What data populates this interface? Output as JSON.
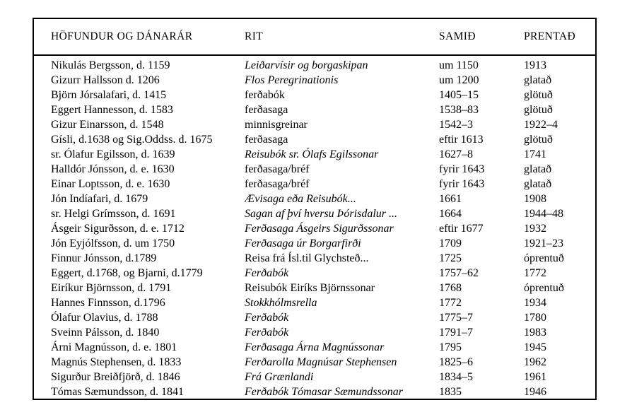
{
  "page": {
    "background": "#ffffff",
    "text_color": "#000000",
    "border_color": "#000000"
  },
  "table": {
    "headers": [
      "HÖFUNDUR OG DÁNARÁR",
      "RIT",
      "SAMIÐ",
      "PRENTAÐ"
    ],
    "rows": [
      {
        "author": "Nikulás Bergsson, d. 1159",
        "rit": "Leiðarvísir og borgaskipan",
        "rit_italic": true,
        "samid": "um 1150",
        "prentad": "1913"
      },
      {
        "author": "Gizurr Hallsson d. 1206",
        "rit": "Flos Peregrinationis",
        "rit_italic": true,
        "samid": "um 1200",
        "prentad": "glatað"
      },
      {
        "author": "Björn Jórsalafari, d. 1415",
        "rit": "ferðabók",
        "rit_italic": false,
        "samid": "1405–15",
        "prentad": "glötuð"
      },
      {
        "author": "Eggert Hannesson, d. 1583",
        "rit": "ferðasaga",
        "rit_italic": false,
        "samid": "1538–83",
        "prentad": "glötuð"
      },
      {
        "author": "Gizur Einarsson, d. 1548",
        "rit": "minnisgreinar",
        "rit_italic": false,
        "samid": "1542–3",
        "prentad": "1922–4"
      },
      {
        "author": "Gísli, d.1638 og Sig.Oddss. d. 1675",
        "rit": "ferðasaga",
        "rit_italic": false,
        "samid": "eftir 1613",
        "prentad": "glötuð"
      },
      {
        "author": "sr. Ólafur Egilsson, d. 1639",
        "rit": "Reisubók sr. Ólafs Egilssonar",
        "rit_italic": true,
        "samid": "1627–8",
        "prentad": "1741"
      },
      {
        "author": "Halldór Jónsson, d. e. 1630",
        "rit": "ferðasaga/bréf",
        "rit_italic": false,
        "samid": "fyrir 1643",
        "prentad": "glatað"
      },
      {
        "author": "Einar Loptsson, d. e. 1630",
        "rit": "ferðasaga/bréf",
        "rit_italic": false,
        "samid": "fyrir 1643",
        "prentad": "glatað"
      },
      {
        "author": "Jón Indíafari, d. 1679",
        "rit": "Ævisaga eða Reisubók...",
        "rit_italic": true,
        "samid": "1661",
        "prentad": "1908"
      },
      {
        "author": "sr. Helgi Grímsson, d. 1691",
        "rit": "Sagan af því hversu Þórisdalur ...",
        "rit_italic": true,
        "samid": "1664",
        "prentad": "1944–48"
      },
      {
        "author": "Ásgeir Sigurðsson, d. e. 1712",
        "rit": "Ferðasaga Ásgeirs Sigurðssonar",
        "rit_italic": true,
        "samid": "eftir 1677",
        "prentad": "1932"
      },
      {
        "author": "Jón Eyjólfsson, d. um 1750",
        "rit": "Ferðasaga úr Borgarfirði",
        "rit_italic": true,
        "samid": "1709",
        "prentad": "1921–23"
      },
      {
        "author": "Finnur Jónsson, d.1789",
        "rit": "Reisa frá Ísl.til Glychsteð...",
        "rit_italic": false,
        "samid": "1725",
        "prentad": "óprentuð"
      },
      {
        "author": "Eggert, d.1768, og Bjarni, d.1779",
        "rit": "Ferðabók",
        "rit_italic": true,
        "samid": "1757–62",
        "prentad": "1772"
      },
      {
        "author": "Eiríkur Björnsson, d. 1791",
        "rit": "Reisubók Eiríks Björnssonar",
        "rit_italic": false,
        "samid": "1768",
        "prentad": "óprentuð"
      },
      {
        "author": "Hannes Finnsson, d.1796",
        "rit": "Stokkhólmsrella",
        "rit_italic": true,
        "samid": "1772",
        "prentad": "1934"
      },
      {
        "author": "Ólafur Olavius, d. 1788",
        "rit": "Ferðabók",
        "rit_italic": true,
        "samid": "1775–7",
        "prentad": "1780"
      },
      {
        "author": "Sveinn Pálsson, d. 1840",
        "rit": "Ferðabók",
        "rit_italic": true,
        "samid": "1791–7",
        "prentad": "1983"
      },
      {
        "author": "Árni Magnússon, d. e. 1801",
        "rit": "Ferðasaga Árna Magnússonar",
        "rit_italic": true,
        "samid": "1795",
        "prentad": "1945"
      },
      {
        "author": "Magnús Stephensen, d. 1833",
        "rit": "Ferðarolla Magnúsar Stephensen",
        "rit_italic": true,
        "samid": "1825–6",
        "prentad": "1962"
      },
      {
        "author": "Sigurður Breiðfjörð, d. 1846",
        "rit": "Frá Grænlandi",
        "rit_italic": true,
        "samid": "1834–5",
        "prentad": "1961"
      },
      {
        "author": "Tómas Sæmundsson, d. 1841",
        "rit": "Ferðabók Tómasar Sæmundssonar",
        "rit_italic": true,
        "samid": "1835",
        "prentad": "1946"
      }
    ]
  }
}
